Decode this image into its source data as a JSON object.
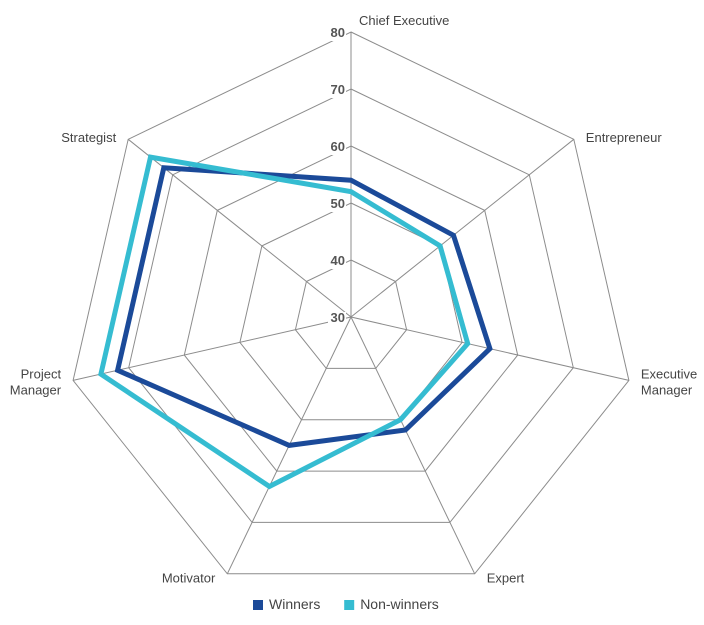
{
  "chart_data": {
    "type": "radar",
    "title": "",
    "categories": [
      "Chief Executive",
      "Entrepreneur",
      "Executive Manager",
      "Expert",
      "Motivator",
      "Project Manager",
      "Strategist"
    ],
    "category_label_lines": [
      [
        "Chief Executive"
      ],
      [
        "Entrepreneur"
      ],
      [
        "Executive",
        "Manager"
      ],
      [
        "Expert"
      ],
      [
        "Motivator"
      ],
      [
        "Project",
        "Manager"
      ],
      [
        "Strategist"
      ]
    ],
    "rlim": [
      30,
      80
    ],
    "ticks": [
      "30",
      "40",
      "50",
      "60",
      "70",
      "80"
    ],
    "grid": true,
    "legend_position": "bottom",
    "series": [
      {
        "name": "Winners",
        "color": "#1b4a99",
        "values": [
          54,
          53,
          55,
          52,
          55,
          72,
          72
        ]
      },
      {
        "name": "Non-winners",
        "color": "#35bcd1",
        "values": [
          52,
          50,
          51,
          50,
          63,
          75,
          75
        ]
      }
    ]
  }
}
